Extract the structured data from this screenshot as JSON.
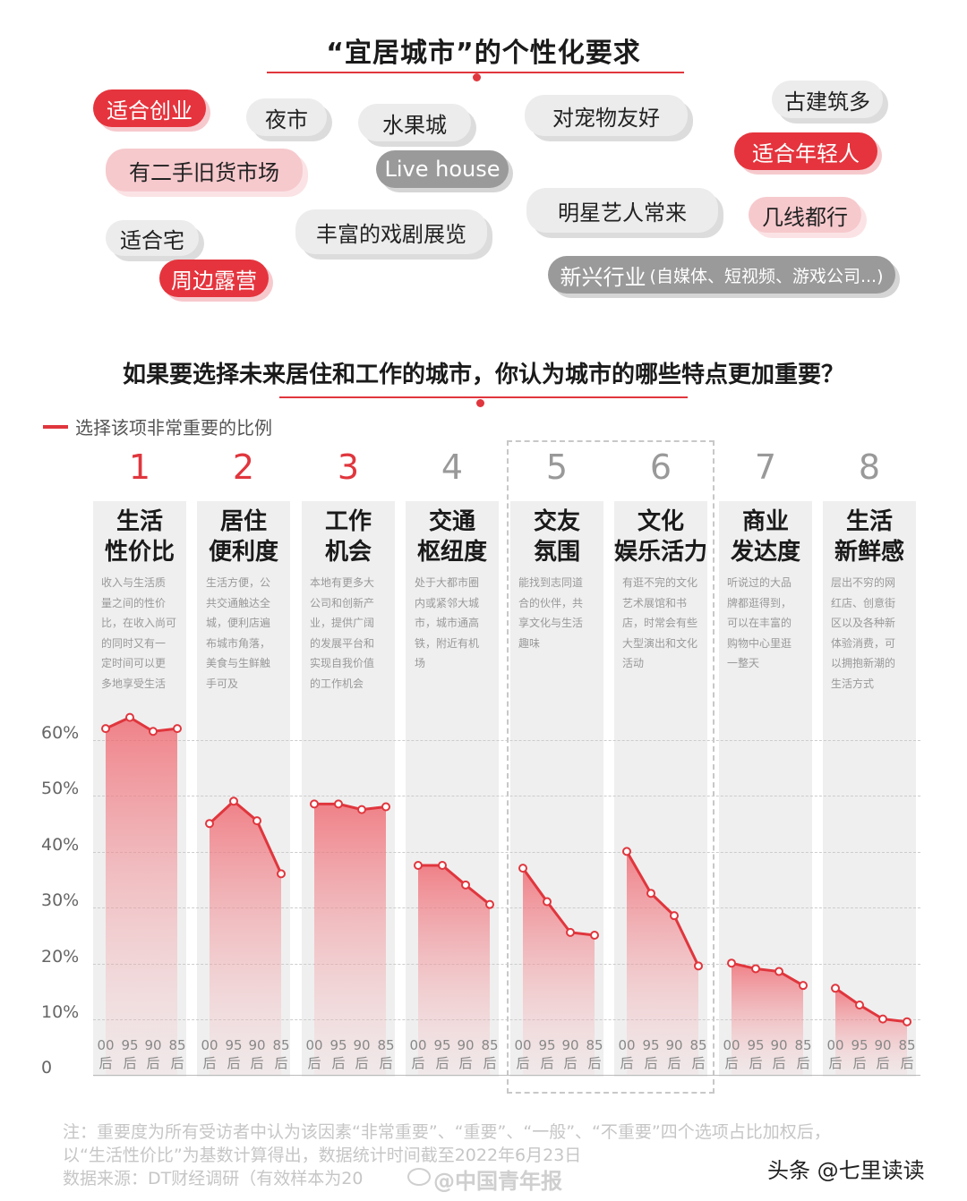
{
  "header": {
    "title": "“宜居城市”的个性化要求"
  },
  "tags": [
    {
      "text": "适合创业",
      "style": "red"
    },
    {
      "text": "夜市",
      "style": "gray"
    },
    {
      "text": "水果城",
      "style": "gray"
    },
    {
      "text": "对宠物友好",
      "style": "gray"
    },
    {
      "text": "古建筑多",
      "style": "gray"
    },
    {
      "text": "有二手旧货市场",
      "style": "pink"
    },
    {
      "text": "Live house",
      "style": "dark"
    },
    {
      "text": "适合年轻人",
      "style": "red"
    },
    {
      "text": "明星艺人常来",
      "style": "gray"
    },
    {
      "text": "几线都行",
      "style": "pink"
    },
    {
      "text": "适合宅",
      "style": "gray"
    },
    {
      "text": "丰富的戏剧展览",
      "style": "gray"
    },
    {
      "text": "周边露营",
      "style": "red"
    },
    {
      "text": "新兴行业",
      "sub": "(自媒体、短视频、游戏公司...)",
      "style": "dark"
    }
  ],
  "survey": {
    "question": "如果要选择未来居住和工作的城市，你认为城市的哪些特点更加重要？",
    "legend": "选择该项非常重要的比例"
  },
  "chart_data": {
    "type": "line",
    "title": "如果要选择未来居住和工作的城市，你认为城市的哪些特点更加重要？",
    "legend": [
      "选择该项非常重要的比例"
    ],
    "ylim": [
      0,
      70
    ],
    "yticks": [
      "0",
      "10%",
      "20%",
      "30%",
      "40%",
      "50%",
      "60%"
    ],
    "x_groups": [
      "00后",
      "95后",
      "90后",
      "85后"
    ],
    "groups": [
      {
        "rank": "1",
        "name": [
          "生活",
          "性价比"
        ],
        "desc": [
          "收入与生活质",
          "量之间的性价",
          "比，在收入尚可",
          "的同时又有一",
          "定时间可以更",
          "多地享受生活"
        ],
        "values": [
          62,
          64,
          61.5,
          62
        ]
      },
      {
        "rank": "2",
        "name": [
          "居住",
          "便利度"
        ],
        "desc": [
          "生活方便，公",
          "共交通触达全",
          "城，便利店遍",
          "布城市角落，",
          "美食与生鲜触",
          "手可及"
        ],
        "values": [
          45,
          49,
          45.5,
          36
        ]
      },
      {
        "rank": "3",
        "name": [
          "工作",
          "机会"
        ],
        "desc": [
          "本地有更多大",
          "公司和创新产",
          "业，提供广阔",
          "的发展平台和",
          "实现自我价值",
          "的工作机会"
        ],
        "values": [
          48.5,
          48.5,
          47.5,
          48
        ]
      },
      {
        "rank": "4",
        "name": [
          "交通",
          "枢纽度"
        ],
        "desc": [
          "处于大都市圈",
          "内或紧邻大城",
          "市，城市通高",
          "铁，附近有机",
          "场"
        ],
        "values": [
          37.5,
          37.5,
          34,
          30.5
        ]
      },
      {
        "rank": "5",
        "name": [
          "交友",
          "氛围"
        ],
        "desc": [
          "能找到志同道",
          "合的伙伴，共",
          "享文化与生活",
          "趣味"
        ],
        "values": [
          37,
          31,
          25.5,
          25
        ]
      },
      {
        "rank": "6",
        "name": [
          "文化",
          "娱乐活力"
        ],
        "desc": [
          "有逛不完的文化",
          "艺术展馆和书",
          "店，时常会有些",
          "大型演出和文化",
          "活动"
        ],
        "values": [
          40,
          32.5,
          28.5,
          19.5
        ]
      },
      {
        "rank": "7",
        "name": [
          "商业",
          "发达度"
        ],
        "desc": [
          "听说过的大品",
          "牌都逛得到，",
          "可以在丰富的",
          "购物中心里逛",
          "一整天"
        ],
        "values": [
          20,
          19,
          18.5,
          16
        ]
      },
      {
        "rank": "8",
        "name": [
          "生活",
          "新鲜感"
        ],
        "desc": [
          "层出不穷的网",
          "红店、创意街",
          "区以及各种新",
          "体验消费，可",
          "以拥抱新潮的",
          "生活方式"
        ],
        "values": [
          15.5,
          12.5,
          10,
          9.5
        ]
      }
    ],
    "line_color": "#e0363d",
    "grid": "dashed"
  },
  "notes": [
    "注：重要度为所有受访者中认为该因素“非常重要”、“重要”、“一般”、“不重要”四个选项占比加权后，",
    "以“生活性价比”为基数计算得出，数据统计时间截至2022年6月23日",
    "数据来源：DT财经调研（有效样本为20"
  ],
  "watermark": "@中国青年报",
  "signature": "头条 @七里读读"
}
